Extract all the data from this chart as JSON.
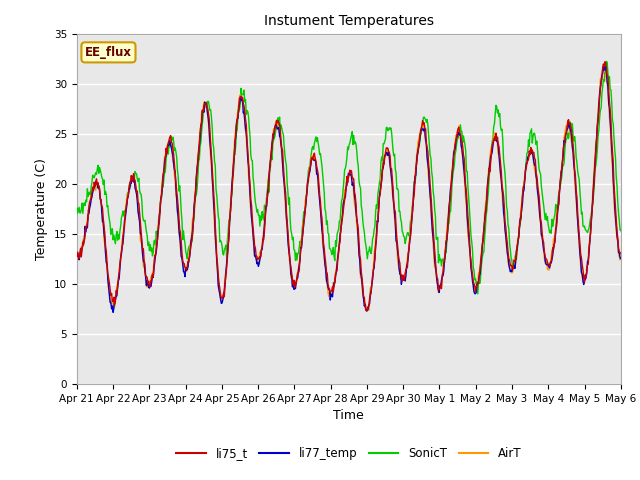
{
  "title": "Instument Temperatures",
  "xlabel": "Time",
  "ylabel": "Temperature (C)",
  "ylim": [
    0,
    35
  ],
  "yticks": [
    0,
    5,
    10,
    15,
    20,
    25,
    30,
    35
  ],
  "xtick_labels": [
    "Apr 21",
    "Apr 22",
    "Apr 23",
    "Apr 24",
    "Apr 25",
    "Apr 26",
    "Apr 27",
    "Apr 28",
    "Apr 29",
    "Apr 30",
    "May 1",
    "May 2",
    "May 3",
    "May 4",
    "May 5",
    "May 6"
  ],
  "series_colors": {
    "li75_t": "#cc0000",
    "li77_temp": "#0000cc",
    "SonicT": "#00cc00",
    "AirT": "#ff9900"
  },
  "label_box_text": "EE_flux",
  "label_box_bg": "#ffffcc",
  "label_box_border": "#cc9900",
  "label_text_color": "#660000",
  "plot_bg": "#e8e8e8",
  "grid_color": "#ffffff",
  "line_width": 1.0,
  "figsize": [
    6.4,
    4.8
  ],
  "dpi": 100,
  "peaks_li75": [
    20.0,
    20.5,
    21.0,
    27.2,
    29.0,
    28.5,
    24.2,
    21.5,
    21.0,
    25.5,
    26.3,
    24.5,
    25.0,
    22.0,
    29.5,
    34.0
  ],
  "troughs_li75": [
    13.0,
    8.0,
    10.0,
    11.5,
    8.5,
    12.5,
    10.0,
    9.2,
    7.5,
    10.5,
    9.8,
    9.5,
    11.5,
    12.0,
    10.5,
    13.0
  ],
  "peaks_sonic": [
    21.5,
    21.0,
    21.0,
    27.0,
    29.2,
    28.8,
    24.5,
    24.8,
    24.8,
    26.4,
    26.5,
    25.0,
    29.2,
    22.5,
    27.5,
    34.0
  ],
  "troughs_sonic": [
    17.5,
    14.5,
    13.5,
    13.0,
    13.0,
    16.5,
    13.0,
    13.0,
    13.0,
    14.5,
    12.0,
    9.5,
    11.5,
    15.5,
    15.0,
    14.5
  ]
}
